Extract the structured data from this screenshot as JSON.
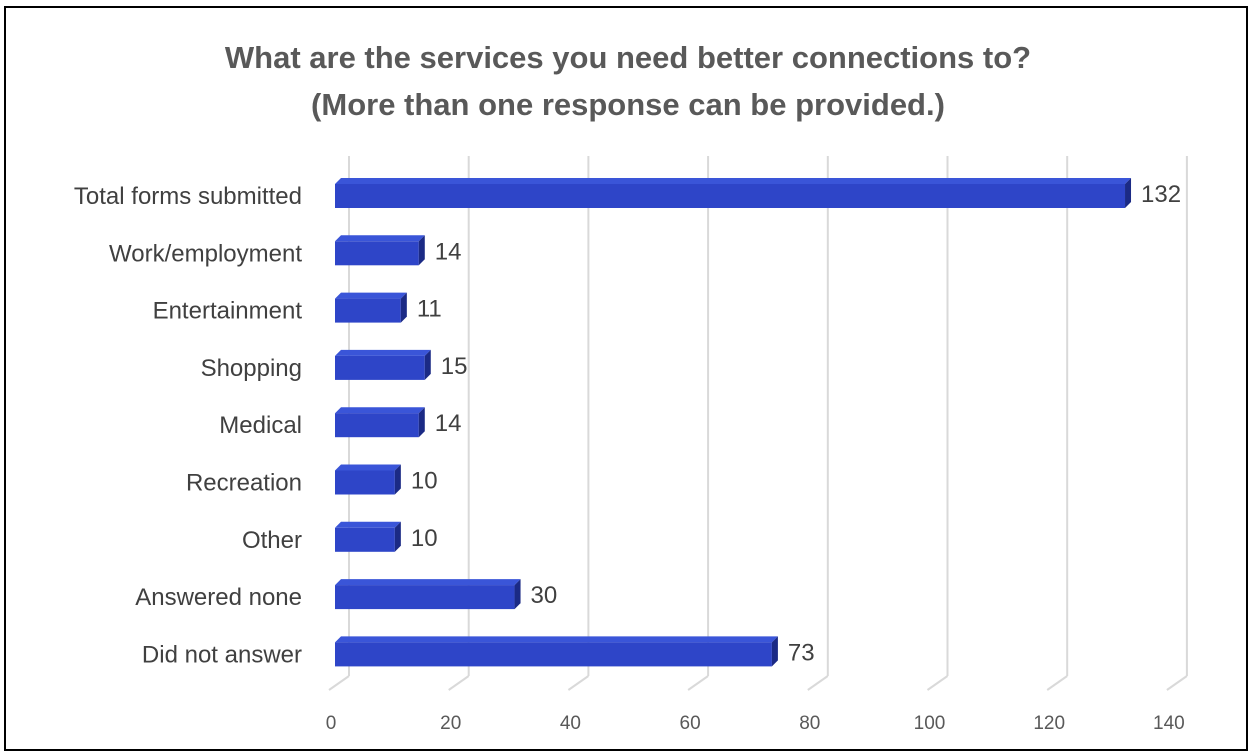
{
  "chart_data": {
    "type": "bar",
    "orientation": "horizontal",
    "title": "What are the services you need better connections to?",
    "subtitle": "(More than one response can be provided.)",
    "categories": [
      "Total forms submitted",
      "Work/employment",
      "Entertainment",
      "Shopping",
      "Medical",
      "Recreation",
      "Other",
      "Answered none",
      "Did not answer"
    ],
    "values": [
      132,
      14,
      11,
      15,
      14,
      10,
      10,
      30,
      73
    ],
    "xlim": [
      0,
      140
    ],
    "xticks": [
      0,
      20,
      40,
      60,
      80,
      100,
      120,
      140
    ],
    "grid": true,
    "legend": "none",
    "bar_color": "#2E45C8",
    "bar_side_color": "#1B2A85",
    "bar_top_color": "#3A55D8"
  }
}
